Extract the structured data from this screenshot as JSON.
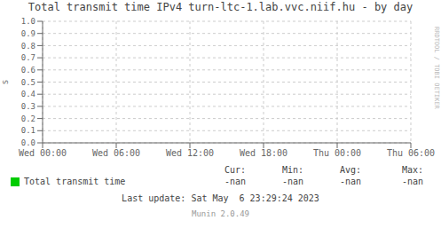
{
  "chart_data": {
    "type": "line",
    "title": "Total transmit time IPv4 turn-ltc-1.lab.vvc.niif.hu - by day",
    "y_label": "s",
    "categories": [
      "Wed 00:00",
      "Wed 06:00",
      "Wed 12:00",
      "Wed 18:00",
      "Thu 00:00",
      "Thu 06:00"
    ],
    "series": [
      {
        "name": "Total transmit time",
        "color": "#00cc00",
        "values": [
          null,
          null,
          null,
          null,
          null,
          null
        ]
      }
    ],
    "ylim": [
      0,
      1
    ],
    "yticks": [
      {
        "value": 0,
        "label": "0.0"
      },
      0.1,
      0.2,
      0.3,
      0.4,
      0.5,
      0.6,
      0.7,
      0.8,
      0.9,
      {
        "value": 1,
        "label": "1.0"
      }
    ],
    "grid": true,
    "legend": "bottom",
    "annotations": [
      "Cur:",
      "Min:",
      "Avg:",
      "Max:",
      "-nan",
      "-nan",
      "-nan",
      "-nan",
      "Last update: Sat May  6 23:29:24 2023",
      "Munin 2.0.49",
      "RRDTOOL / TOBI OETIKER"
    ]
  }
}
